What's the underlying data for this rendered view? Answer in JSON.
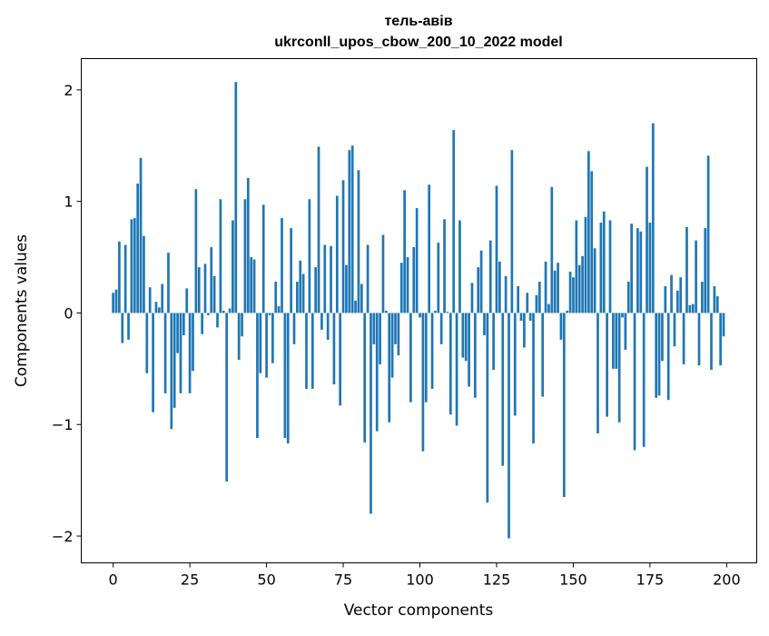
{
  "chart_data": {
    "type": "bar",
    "title": "тель-авів",
    "subtitle": "ukrconll_upos_cbow_200_10_2022 model",
    "xlabel": "Vector components",
    "ylabel": "Components values",
    "xlim": [
      -10.4,
      209.8
    ],
    "ylim": [
      -2.24,
      2.28
    ],
    "xticks": [
      0,
      25,
      50,
      75,
      100,
      125,
      150,
      175,
      200
    ],
    "xtick_labels": [
      "0",
      "25",
      "50",
      "75",
      "100",
      "125",
      "150",
      "175",
      "200"
    ],
    "yticks": [
      -2,
      -1,
      0,
      1,
      2
    ],
    "ytick_labels": [
      "−2",
      "−1",
      "0",
      "1",
      "2"
    ],
    "grid": false,
    "bar_color": "#1f77b4",
    "bar_width": 0.8,
    "values": [
      0.18,
      0.21,
      0.64,
      -0.27,
      0.61,
      -0.24,
      0.84,
      0.85,
      1.16,
      1.39,
      0.69,
      -0.54,
      0.23,
      -0.89,
      0.1,
      0.05,
      0.26,
      -0.72,
      0.54,
      -1.04,
      -0.85,
      -0.36,
      -0.72,
      -0.2,
      0.22,
      -0.72,
      -0.52,
      1.11,
      0.41,
      -0.19,
      0.44,
      -0.02,
      0.59,
      0.33,
      -0.13,
      1.02,
      0.02,
      -1.51,
      0.04,
      0.83,
      2.07,
      -0.42,
      -0.21,
      1.02,
      1.21,
      0.5,
      0.48,
      -1.12,
      -0.54,
      0.97,
      -0.58,
      -0.02,
      -0.45,
      0.28,
      0.06,
      0.85,
      -1.12,
      -1.17,
      0.76,
      -0.28,
      0.28,
      0.47,
      0.35,
      -0.68,
      1.02,
      -0.68,
      0.41,
      1.49,
      -0.15,
      0.61,
      -0.24,
      0.6,
      -0.64,
      1.05,
      -0.83,
      1.19,
      0.43,
      1.46,
      1.5,
      0.11,
      1.28,
      0.26,
      -1.16,
      0.61,
      -1.8,
      -0.28,
      -1.06,
      -0.46,
      0.7,
      0.02,
      -0.98,
      -0.58,
      -0.28,
      -0.38,
      0.45,
      1.1,
      0.5,
      -0.8,
      0.59,
      0.94,
      -0.04,
      -1.24,
      -0.8,
      1.15,
      -0.68,
      0.02,
      0.63,
      -0.28,
      0.84,
      0.01,
      -0.91,
      1.64,
      -1.01,
      0.83,
      -0.4,
      -0.43,
      -0.66,
      0.27,
      -0.76,
      0.41,
      0.56,
      -0.2,
      -1.7,
      0.65,
      -0.51,
      1.14,
      0.46,
      -1.37,
      0.33,
      -2.02,
      1.46,
      -0.92,
      0.24,
      -0.07,
      -0.31,
      0.18,
      -0.07,
      -1.17,
      0.16,
      0.28,
      -0.75,
      0.46,
      0.08,
      1.13,
      0.38,
      0.45,
      -0.24,
      -1.65,
      0.02,
      0.37,
      0.32,
      0.83,
      0.43,
      0.51,
      0.86,
      1.45,
      1.27,
      0.58,
      -1.08,
      0.81,
      0.91,
      -0.93,
      0.83,
      -0.5,
      -0.5,
      -0.98,
      -0.04,
      -0.33,
      0.28,
      0.8,
      -1.23,
      0.76,
      0.73,
      -1.2,
      1.31,
      0.81,
      1.7,
      -0.76,
      -0.74,
      -0.43,
      0.24,
      -0.78,
      0.34,
      -0.3,
      0.2,
      0.32,
      -0.46,
      0.77,
      0.07,
      0.08,
      0.65,
      -0.47,
      0.28,
      0.76,
      1.41,
      -0.51,
      0.24,
      0.15,
      -0.47,
      -0.21
    ]
  }
}
